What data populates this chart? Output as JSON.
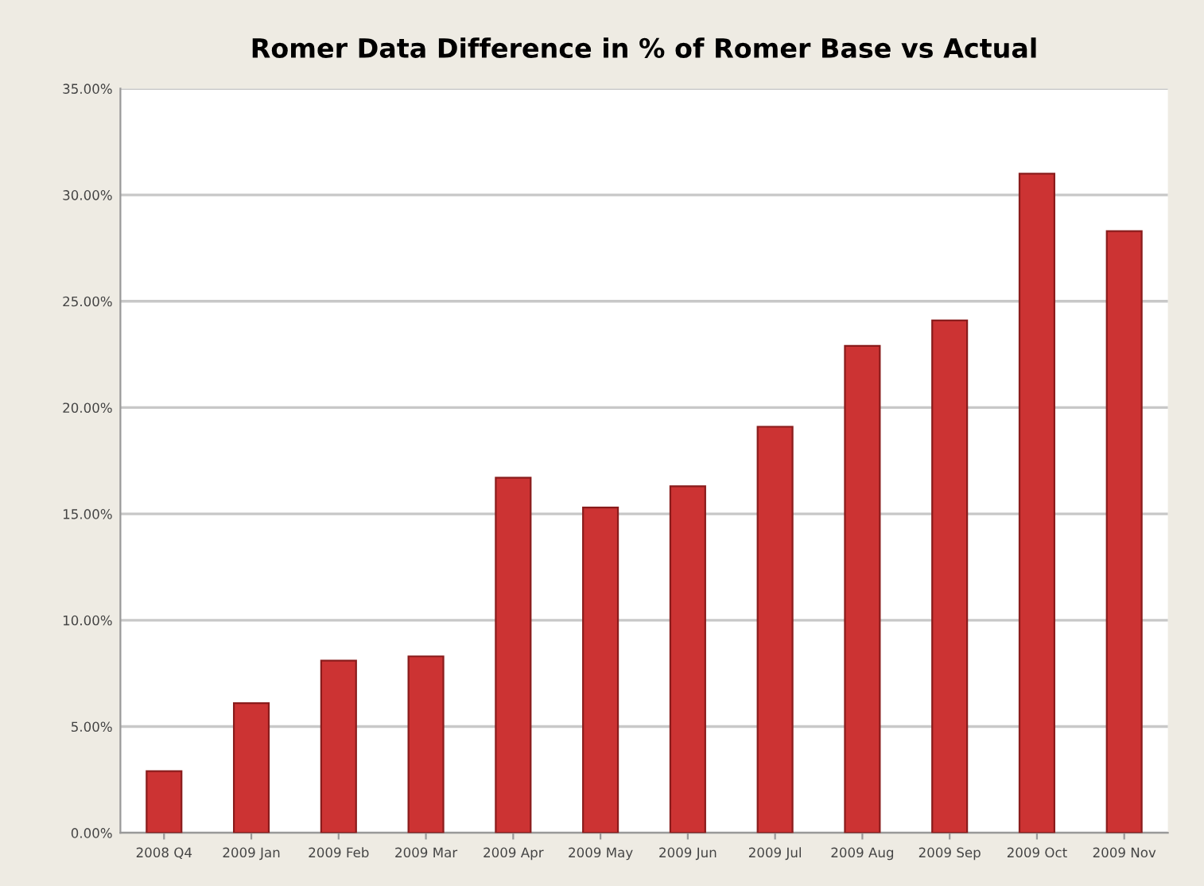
{
  "chart_data": {
    "type": "bar",
    "title": "Romer Data Difference in % of Romer Base vs Actual",
    "categories": [
      "2008 Q4",
      "2009 Jan",
      "2009 Feb",
      "2009 Mar",
      "2009 Apr",
      "2009 May",
      "2009 Jun",
      "2009 Jul",
      "2009 Aug",
      "2009 Sep",
      "2009 Oct",
      "2009 Nov"
    ],
    "values": [
      2.9,
      6.1,
      8.1,
      8.3,
      16.7,
      15.3,
      16.3,
      19.1,
      22.9,
      24.1,
      31.0,
      28.3
    ],
    "color": "#cc3333",
    "ylim": [
      0,
      35
    ],
    "yticks": [
      {
        "value": 0,
        "label": "0.00%"
      },
      {
        "value": 5,
        "label": "5.00%"
      },
      {
        "value": 10,
        "label": "10.00%"
      },
      {
        "value": 15,
        "label": "15.00%"
      },
      {
        "value": 20,
        "label": "20.00%"
      },
      {
        "value": 25,
        "label": "25.00%"
      },
      {
        "value": 30,
        "label": "30.00%"
      },
      {
        "value": 35,
        "label": "35.00%"
      }
    ],
    "grid": "y"
  }
}
